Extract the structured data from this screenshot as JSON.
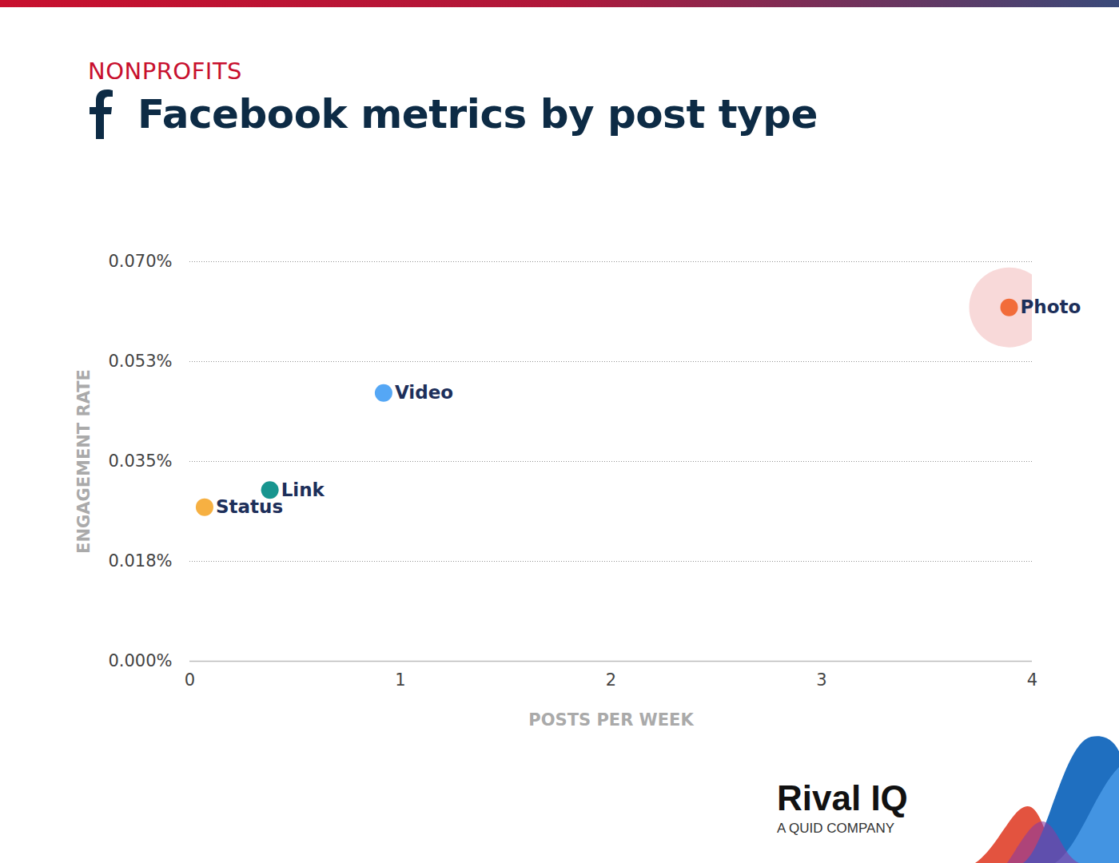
{
  "chart_data": {
    "type": "scatter",
    "title": "Facebook metrics by post type",
    "subtitle": "NONPROFITS",
    "x_label": "POSTS PER WEEK",
    "y_label": "ENGAGEMENT RATE",
    "categories": [
      "Status",
      "Link",
      "Video",
      "Photo"
    ],
    "x": [
      0.07,
      0.38,
      0.92,
      3.89
    ],
    "values": [
      0.027,
      0.03,
      0.047,
      0.062
    ],
    "colors": [
      "#f6b042",
      "#17958f",
      "#55a7f5",
      "#f26c3a"
    ],
    "xlim": [
      0,
      4
    ],
    "xticks": [
      0,
      1,
      2,
      3,
      4
    ],
    "ylim": [
      0,
      0.07
    ],
    "yticks": [
      {
        "value": 0,
        "label": "0.000%"
      },
      {
        "value": 0.0175,
        "label": "0.018%"
      },
      {
        "value": 0.035,
        "label": "0.035%"
      },
      {
        "value": 0.0525,
        "label": "0.053%"
      },
      {
        "value": 0.07,
        "label": "0.070%"
      }
    ],
    "grid": true,
    "source": "Rival IQ",
    "source_note": "A QUID COMPANY"
  }
}
